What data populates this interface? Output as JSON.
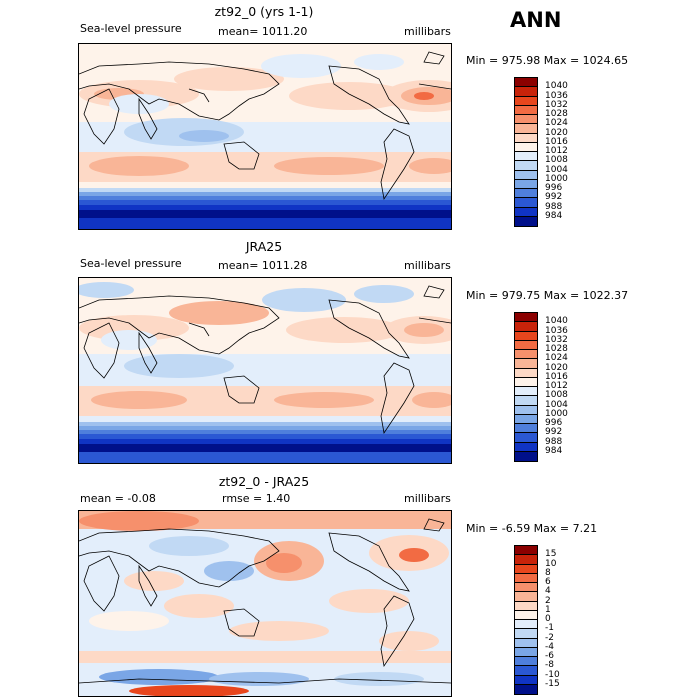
{
  "season": "ANN",
  "panels": [
    {
      "title": "zt92_0 (yrs 1-1)",
      "left_label": "Sea-level pressure",
      "center_label": "mean= 1011.20",
      "right_label": "millibars",
      "minmax": "Min = 975.98 Max = 1024.65",
      "colorbar": {
        "levels": [
          "1040",
          "1036",
          "1032",
          "1028",
          "1024",
          "1020",
          "1016",
          "1012",
          "1008",
          "1004",
          "1000",
          "996",
          "992",
          "988",
          "984"
        ],
        "colors": [
          "#8b0000",
          "#c8230a",
          "#e8461d",
          "#f26b43",
          "#f6906c",
          "#f9b597",
          "#fdd9c6",
          "#fef3ea",
          "#e3eefb",
          "#c1d9f4",
          "#9fc1ee",
          "#7aa6e6",
          "#4f7fdc",
          "#2b58d3",
          "#1034c4",
          "#00108a"
        ]
      }
    },
    {
      "title": "JRA25",
      "left_label": "Sea-level pressure",
      "center_label": "mean= 1011.28",
      "right_label": "millibars",
      "minmax": "Min = 979.75 Max = 1022.37",
      "colorbar": {
        "levels": [
          "1040",
          "1036",
          "1032",
          "1028",
          "1024",
          "1020",
          "1016",
          "1012",
          "1008",
          "1004",
          "1000",
          "996",
          "992",
          "988",
          "984"
        ],
        "colors": [
          "#8b0000",
          "#c8230a",
          "#e8461d",
          "#f26b43",
          "#f6906c",
          "#f9b597",
          "#fdd9c6",
          "#fef3ea",
          "#e3eefb",
          "#c1d9f4",
          "#9fc1ee",
          "#7aa6e6",
          "#4f7fdc",
          "#2b58d3",
          "#1034c4",
          "#00108a"
        ]
      }
    },
    {
      "title": "zt92_0 - JRA25",
      "left_label": "mean =  -0.08",
      "center_label": "rmse =   1.40",
      "right_label": "millibars",
      "minmax": "Min =  -6.59 Max =   7.21",
      "colorbar": {
        "levels": [
          "15",
          "10",
          "8",
          "6",
          "4",
          "2",
          "1",
          "0",
          "-1",
          "-2",
          "-4",
          "-6",
          "-8",
          "-10",
          "-15"
        ],
        "colors": [
          "#8b0000",
          "#c8230a",
          "#e8461d",
          "#f26b43",
          "#f6906c",
          "#f9b597",
          "#fdd9c6",
          "#fef3ea",
          "#e3eefb",
          "#c1d9f4",
          "#9fc1ee",
          "#7aa6e6",
          "#4f7fdc",
          "#2b58d3",
          "#1034c4",
          "#00108a"
        ]
      }
    }
  ]
}
